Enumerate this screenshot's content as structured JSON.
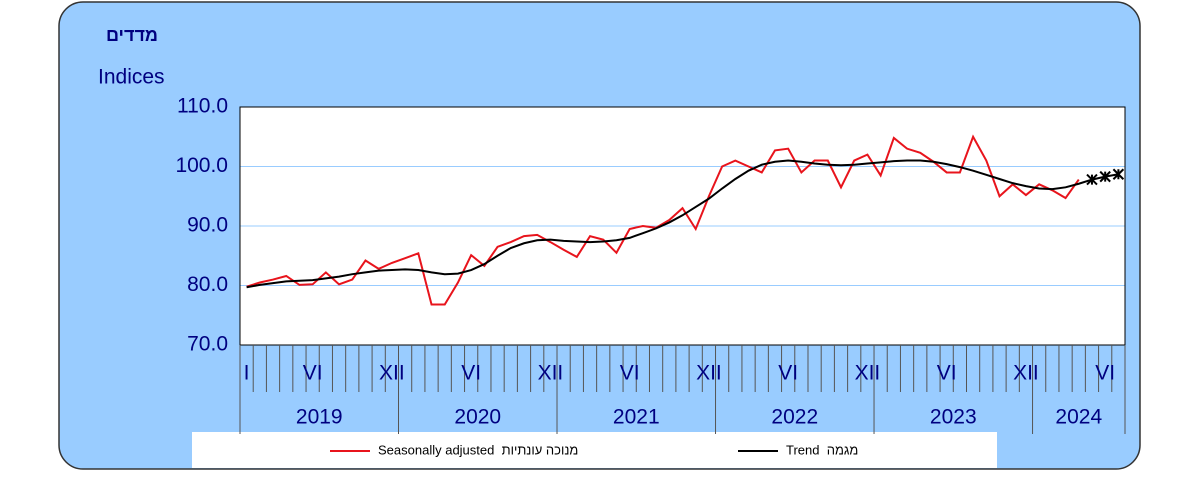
{
  "chart_data": {
    "type": "line",
    "title": "מדדים",
    "y_label": "Indices",
    "categories": [
      "I",
      null,
      null,
      null,
      null,
      "VI",
      null,
      null,
      null,
      null,
      null,
      "XII",
      null,
      null,
      null,
      null,
      null,
      "VI",
      null,
      null,
      null,
      null,
      null,
      "XII",
      null,
      null,
      null,
      null,
      null,
      "VI",
      null,
      null,
      null,
      null,
      null,
      "XII",
      null,
      null,
      null,
      null,
      null,
      "VI",
      null,
      null,
      null,
      null,
      null,
      "XII",
      null,
      null,
      null,
      null,
      null,
      "VI",
      null,
      null,
      null,
      null,
      null,
      "XII",
      null,
      null,
      null,
      null,
      null,
      "VI",
      null
    ],
    "years": [
      "2019",
      "2020",
      "2021",
      "2022",
      "2023",
      "2024"
    ],
    "ylim": [
      70,
      110
    ],
    "yticks": [
      {
        "value": 70,
        "label": "70.0"
      },
      {
        "value": 80,
        "label": "80.0"
      },
      {
        "value": 90,
        "label": "90.0"
      },
      {
        "value": 100,
        "label": "100.0"
      },
      {
        "value": 110,
        "label": "110.0"
      }
    ],
    "grid": true,
    "series": [
      {
        "name": "Seasonally adjusted  מנוכה עונתיות",
        "color": "#e8141c",
        "values": [
          79.8,
          80.5,
          81.0,
          81.6,
          80.1,
          80.2,
          82.2,
          80.2,
          81.0,
          84.2,
          82.8,
          83.8,
          84.6,
          85.4,
          76.8,
          76.8,
          80.5,
          85.1,
          83.3,
          86.5,
          87.3,
          88.3,
          88.5,
          87.3,
          86.0,
          84.8,
          88.3,
          87.7,
          85.5,
          89.5,
          90.0,
          89.7,
          91.0,
          93.0,
          89.5,
          95.0,
          100.0,
          101.0,
          100.0,
          99.0,
          102.7,
          103.0,
          99.0,
          101.0,
          101.0,
          96.5,
          101.0,
          102.0,
          98.5,
          104.8,
          103.0,
          102.3,
          100.8,
          99.0,
          99.0,
          105.0,
          101.0,
          95.0,
          97.0,
          95.2,
          97.0,
          96.0,
          94.7,
          97.8,
          null,
          null,
          null
        ]
      },
      {
        "name": "Trend  מגמה",
        "color": "#000000",
        "marker_last": 3,
        "values": [
          79.7,
          80.1,
          80.4,
          80.7,
          80.8,
          80.9,
          81.2,
          81.5,
          81.9,
          82.2,
          82.5,
          82.6,
          82.7,
          82.6,
          82.2,
          81.9,
          82.0,
          82.6,
          83.6,
          85.0,
          86.3,
          87.1,
          87.6,
          87.7,
          87.5,
          87.4,
          87.3,
          87.4,
          87.6,
          88.0,
          88.8,
          89.6,
          90.6,
          91.8,
          93.2,
          94.6,
          96.3,
          97.9,
          99.3,
          100.3,
          100.8,
          101.0,
          100.8,
          100.5,
          100.3,
          100.2,
          100.3,
          100.5,
          100.7,
          100.9,
          101.0,
          101.0,
          100.8,
          100.4,
          99.9,
          99.3,
          98.6,
          97.9,
          97.2,
          96.7,
          96.3,
          96.2,
          96.5,
          97.1,
          97.8,
          98.3,
          98.7
        ]
      }
    ]
  }
}
